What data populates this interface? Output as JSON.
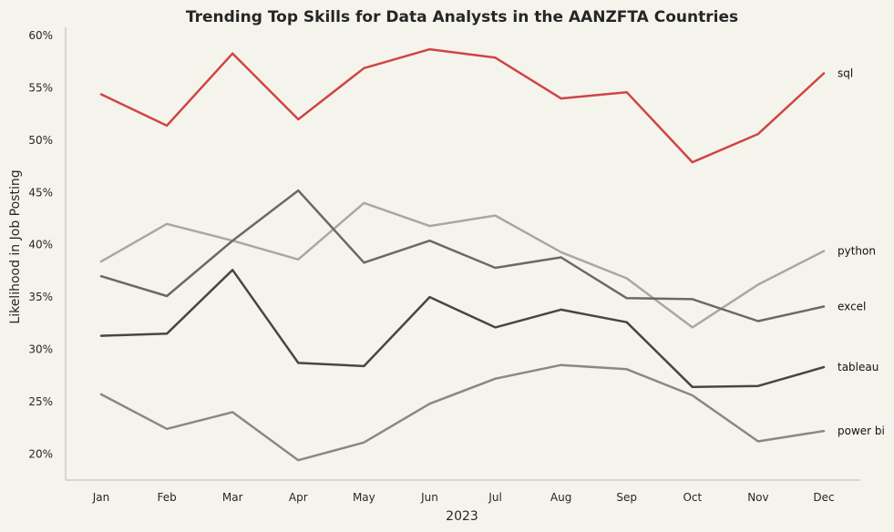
{
  "chart_data": {
    "type": "line",
    "title": "Trending Top Skills for Data Analysts in the AANZFTA Countries",
    "xlabel": "2023",
    "ylabel": "Likelihood in Job Posting",
    "categories": [
      "Jan",
      "Feb",
      "Mar",
      "Apr",
      "May",
      "Jun",
      "Jul",
      "Aug",
      "Sep",
      "Oct",
      "Nov",
      "Dec"
    ],
    "ylim": [
      17.5,
      60.8
    ],
    "yticks": [
      20,
      25,
      30,
      35,
      40,
      45,
      50,
      55,
      60
    ],
    "ytick_labels": [
      "20%",
      "25%",
      "30%",
      "35%",
      "40%",
      "45%",
      "50%",
      "55%",
      "60%"
    ],
    "grid": false,
    "legend": "none (series labeled at line ends)",
    "series": [
      {
        "name": "sql",
        "color": "#cf4545",
        "values": [
          54.4,
          51.4,
          58.3,
          52.0,
          56.9,
          58.7,
          57.9,
          54.0,
          54.6,
          47.9,
          50.6,
          56.4
        ]
      },
      {
        "name": "python",
        "color": "#a8a7a5",
        "values": [
          38.4,
          42.0,
          40.4,
          38.6,
          44.0,
          41.8,
          42.8,
          39.3,
          36.8,
          32.1,
          36.2,
          39.4
        ]
      },
      {
        "name": "excel",
        "color": "#6b6967",
        "values": [
          37.0,
          35.1,
          40.4,
          45.2,
          38.3,
          40.4,
          37.8,
          38.8,
          34.9,
          34.8,
          32.7,
          34.1
        ]
      },
      {
        "name": "tableau",
        "color": "#484644",
        "values": [
          31.3,
          31.5,
          37.6,
          28.7,
          28.4,
          35.0,
          32.1,
          33.8,
          32.6,
          26.4,
          26.5,
          28.3
        ]
      },
      {
        "name": "power bi",
        "color": "#8a8886",
        "values": [
          25.7,
          22.4,
          24.0,
          19.4,
          21.1,
          24.8,
          27.2,
          28.5,
          28.1,
          25.6,
          21.2,
          22.2
        ]
      }
    ]
  }
}
